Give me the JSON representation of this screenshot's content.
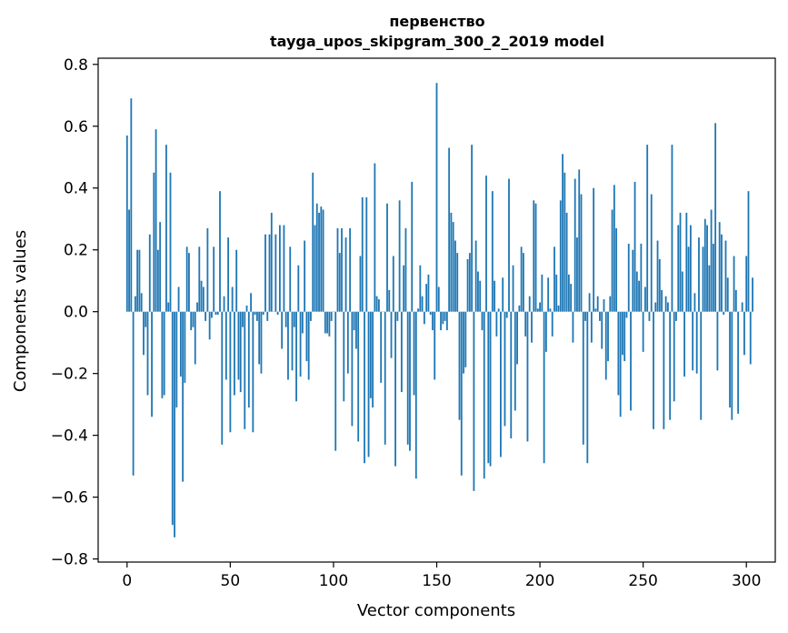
{
  "chart_data": {
    "type": "bar",
    "title_lines": [
      "первенство",
      "tayga_upos_skipgram_300_2_2019 model"
    ],
    "xlabel": "Vector components",
    "ylabel": "Components values",
    "xlim": [
      -14,
      314
    ],
    "ylim": [
      -0.81,
      0.82
    ],
    "xticks": [
      0,
      50,
      100,
      150,
      200,
      250,
      300
    ],
    "yticks": [
      -0.8,
      -0.6,
      -0.4,
      -0.2,
      0.0,
      0.2,
      0.4,
      0.6,
      0.8
    ],
    "ytick_labels": [
      "−0.8",
      "−0.6",
      "−0.4",
      "−0.2",
      "0.0",
      "0.2",
      "0.4",
      "0.6",
      "0.8"
    ],
    "bar_color": "#1f77b4",
    "grid": false,
    "values": [
      0.57,
      0.33,
      0.69,
      -0.53,
      0.05,
      0.2,
      0.2,
      0.06,
      -0.14,
      -0.05,
      -0.27,
      0.25,
      -0.34,
      0.45,
      0.59,
      0.2,
      0.29,
      -0.28,
      -0.27,
      0.54,
      0.03,
      0.45,
      -0.69,
      -0.73,
      -0.31,
      0.08,
      -0.21,
      -0.55,
      -0.23,
      0.21,
      0.19,
      -0.06,
      -0.05,
      -0.17,
      0.03,
      0.21,
      0.1,
      0.08,
      -0.03,
      0.27,
      -0.09,
      -0.02,
      0.21,
      -0.01,
      -0.01,
      0.39,
      -0.43,
      0.05,
      -0.22,
      0.24,
      -0.39,
      0.08,
      -0.27,
      0.2,
      -0.22,
      -0.26,
      -0.05,
      -0.38,
      0.02,
      -0.31,
      0.06,
      -0.39,
      -0.01,
      -0.03,
      -0.17,
      -0.2,
      -0.01,
      0.25,
      -0.03,
      0.25,
      0.32,
      0.0,
      0.25,
      -0.01,
      0.28,
      -0.12,
      0.28,
      -0.05,
      -0.22,
      0.21,
      -0.19,
      -0.05,
      -0.29,
      0.15,
      -0.21,
      -0.07,
      0.23,
      -0.16,
      -0.22,
      -0.03,
      0.45,
      0.28,
      0.35,
      0.32,
      0.34,
      0.33,
      -0.07,
      -0.07,
      -0.08,
      -0.03,
      0.0,
      -0.45,
      0.27,
      0.19,
      0.27,
      -0.29,
      0.24,
      -0.2,
      0.27,
      -0.37,
      -0.06,
      -0.12,
      -0.42,
      0.18,
      0.37,
      -0.49,
      0.37,
      -0.47,
      -0.28,
      -0.31,
      0.48,
      0.05,
      0.04,
      -0.23,
      0.0,
      -0.43,
      0.35,
      0.07,
      -0.15,
      0.18,
      -0.5,
      -0.03,
      0.36,
      -0.26,
      0.15,
      0.27,
      -0.43,
      -0.45,
      0.42,
      -0.27,
      -0.54,
      0.01,
      0.15,
      0.05,
      -0.04,
      0.09,
      0.12,
      -0.01,
      -0.06,
      -0.22,
      0.74,
      0.08,
      -0.06,
      -0.04,
      -0.03,
      -0.06,
      0.53,
      0.32,
      0.29,
      0.23,
      0.19,
      -0.35,
      -0.53,
      -0.2,
      -0.18,
      0.17,
      0.19,
      0.54,
      -0.58,
      0.23,
      0.13,
      0.1,
      -0.06,
      -0.54,
      0.44,
      -0.49,
      -0.5,
      0.39,
      0.1,
      -0.08,
      0.01,
      -0.47,
      0.11,
      -0.37,
      -0.02,
      0.43,
      -0.41,
      0.15,
      -0.32,
      -0.17,
      0.02,
      0.21,
      0.19,
      -0.08,
      -0.42,
      0.05,
      -0.1,
      0.36,
      0.35,
      0.01,
      0.03,
      0.12,
      -0.49,
      -0.13,
      0.11,
      0.01,
      -0.08,
      0.21,
      0.12,
      0.02,
      0.36,
      0.51,
      0.45,
      0.32,
      0.12,
      0.09,
      -0.1,
      0.43,
      0.24,
      0.46,
      0.38,
      -0.43,
      -0.03,
      -0.49,
      0.06,
      -0.1,
      0.4,
      0.01,
      0.05,
      -0.03,
      -0.12,
      0.04,
      -0.22,
      -0.16,
      0.05,
      0.33,
      0.41,
      0.27,
      -0.27,
      -0.34,
      -0.14,
      -0.16,
      -0.02,
      0.22,
      -0.32,
      0.2,
      0.42,
      0.13,
      0.1,
      0.22,
      -0.13,
      0.08,
      0.54,
      -0.03,
      0.38,
      -0.38,
      0.03,
      0.23,
      0.17,
      0.07,
      -0.38,
      0.05,
      0.03,
      -0.35,
      0.54,
      -0.29,
      -0.03,
      0.28,
      0.32,
      0.13,
      -0.21,
      0.32,
      0.21,
      0.28,
      -0.19,
      0.06,
      -0.2,
      0.24,
      -0.35,
      0.21,
      0.3,
      0.28,
      0.15,
      0.33,
      0.22,
      0.61,
      -0.19,
      0.29,
      0.25,
      -0.01,
      0.23,
      0.11,
      -0.31,
      -0.35,
      0.18,
      0.07,
      -0.33,
      0.0,
      0.03,
      -0.14,
      0.18,
      0.39,
      -0.17,
      0.11
    ]
  }
}
